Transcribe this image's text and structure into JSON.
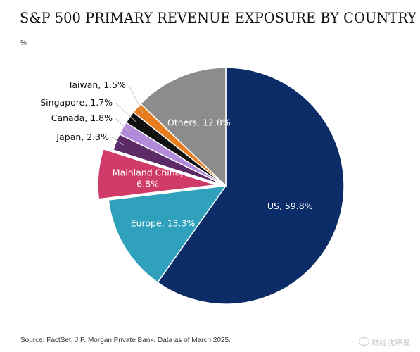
{
  "chart_data": {
    "type": "pie",
    "title": "S&P 500 PRIMARY REVENUE EXPOSURE BY COUNTRY",
    "unit": "%",
    "source": "Source: FactSet, J.P. Morgan Private Bank. Data as of March 2025.",
    "slices": [
      {
        "name": "US",
        "value": 59.8,
        "label": "US, 59.8%",
        "color": "#0b2c66",
        "text_color": "#ffffff",
        "exploded": false,
        "label_inside": true
      },
      {
        "name": "Europe",
        "value": 13.3,
        "label": "Europe, 13.3%",
        "color": "#2fa1bc",
        "text_color": "#ffffff",
        "exploded": false,
        "label_inside": true
      },
      {
        "name": "Mainland China",
        "value": 6.8,
        "label": "Mainland China, 6.8%",
        "label_lines": [
          "Mainland China,",
          "6.8%"
        ],
        "color": "#d03b69",
        "text_color": "#ffffff",
        "exploded": true,
        "label_inside": true
      },
      {
        "name": "Japan",
        "value": 2.3,
        "label": "Japan, 2.3%",
        "color": "#5c2a66",
        "text_color": "#111111",
        "exploded": false,
        "label_inside": false
      },
      {
        "name": "Canada",
        "value": 1.8,
        "label": "Canada, 1.8%",
        "color": "#b18ad9",
        "text_color": "#111111",
        "exploded": false,
        "label_inside": false
      },
      {
        "name": "Singapore",
        "value": 1.7,
        "label": "Singapore, 1.7%",
        "color": "#111111",
        "text_color": "#111111",
        "exploded": false,
        "label_inside": false
      },
      {
        "name": "Taiwan",
        "value": 1.5,
        "label": "Taiwan, 1.5%",
        "color": "#e77d1e",
        "text_color": "#111111",
        "exploded": false,
        "label_inside": false
      },
      {
        "name": "Others",
        "value": 12.8,
        "label": "Others, 12.8%",
        "color": "#8c8c8c",
        "text_color": "#ffffff",
        "exploded": false,
        "label_inside": true
      }
    ],
    "start_angle_deg": 0,
    "direction": "clockwise"
  },
  "watermark": "财经沈婷说"
}
